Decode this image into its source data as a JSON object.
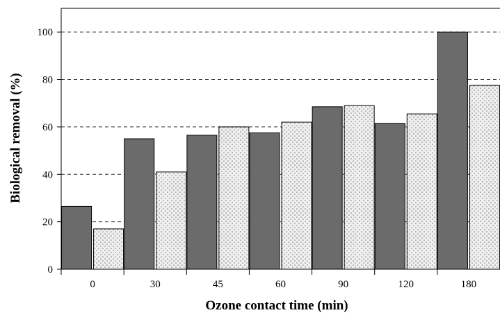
{
  "chart_data": {
    "type": "bar",
    "title": "",
    "xlabel": "Ozone contact time (min)",
    "ylabel": "Biological removal (%)",
    "categories": [
      "0",
      "30",
      "45",
      "60",
      "90",
      "120",
      "180"
    ],
    "series": [
      {
        "values": [
          26.5,
          55,
          56.5,
          57.5,
          68.5,
          61.5,
          100
        ],
        "color": "#6b6b6b",
        "pattern": "solid"
      },
      {
        "values": [
          17,
          41,
          60,
          62,
          69,
          65.5,
          77.5
        ],
        "color": "#e6e6e6",
        "pattern": "stipple"
      }
    ],
    "ylim": [
      0,
      110
    ],
    "yticks": [
      0,
      20,
      40,
      60,
      80,
      100
    ],
    "ytick_labels": [
      "0",
      "20",
      "40",
      "60",
      "80",
      "100"
    ],
    "grid": "horizontal-dashed",
    "legend": "none"
  }
}
